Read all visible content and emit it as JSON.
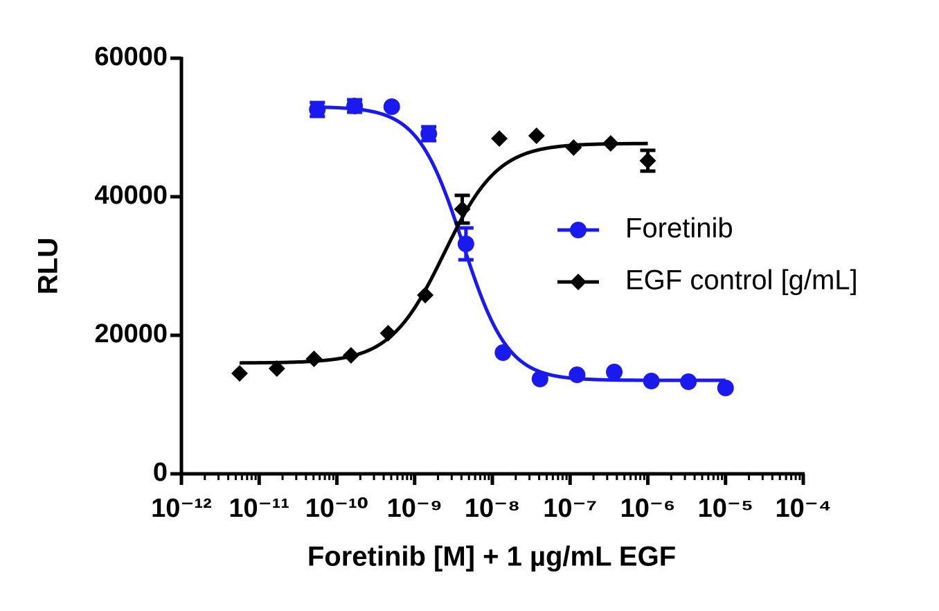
{
  "chart_data": {
    "type": "dose-response",
    "x_label": "Foretinib [M] + 1 µg/mL EGF",
    "y_label": "RLU",
    "x_scale": "log",
    "xlim": [
      1e-12,
      0.0001
    ],
    "xticks": [
      {
        "value": 1e-12,
        "label": "10⁻¹²"
      },
      {
        "value": 1e-11,
        "label": "10⁻¹¹"
      },
      {
        "value": 1e-10,
        "label": "10⁻¹⁰"
      },
      {
        "value": 1e-09,
        "label": "10⁻⁹"
      },
      {
        "value": 1e-08,
        "label": "10⁻⁸"
      },
      {
        "value": 1e-07,
        "label": "10⁻⁷"
      },
      {
        "value": 1e-06,
        "label": "10⁻⁶"
      },
      {
        "value": 1e-05,
        "label": "10⁻⁵"
      },
      {
        "value": 0.0001,
        "label": "10⁻⁴"
      }
    ],
    "ylim": [
      0,
      60000
    ],
    "yticks": [
      0,
      20000,
      40000,
      60000
    ],
    "grid": false,
    "legend_position": "right",
    "series": [
      {
        "name": "Foretinib",
        "color": "#1a1aee",
        "marker": "circle",
        "x": [
          5.6e-11,
          1.69e-10,
          5.08e-10,
          1.52e-09,
          4.57e-09,
          1.37e-08,
          4.1e-08,
          1.23e-07,
          3.7e-07,
          1.11e-06,
          3.33e-06,
          1e-05
        ],
        "values": [
          52600,
          53100,
          53000,
          49100,
          33200,
          17500,
          13700,
          14300,
          14700,
          13400,
          13300,
          12400
        ],
        "errors": [
          1000,
          900,
          null,
          1000,
          2300,
          null,
          null,
          null,
          null,
          null,
          null,
          null
        ],
        "fit": {
          "bottom": 13500,
          "top": 53000,
          "log_ec50": -8.38,
          "hill": -1.5
        }
      },
      {
        "name": "EGF control [g/mL]",
        "color": "#000000",
        "marker": "diamond",
        "x": [
          5.6e-12,
          1.69e-11,
          5.08e-11,
          1.52e-10,
          4.57e-10,
          1.37e-09,
          4.1e-09,
          1.23e-08,
          3.7e-08,
          1.11e-07,
          3.33e-07,
          1e-06
        ],
        "values": [
          14500,
          15200,
          16600,
          17100,
          20300,
          25800,
          38200,
          48400,
          48800,
          47100,
          47700,
          45200
        ],
        "errors": [
          null,
          null,
          null,
          null,
          null,
          null,
          2000,
          null,
          null,
          null,
          null,
          1500
        ],
        "fit": {
          "bottom": 16000,
          "top": 47700,
          "log_ec50": -8.62,
          "hill": 1.25
        }
      }
    ]
  }
}
